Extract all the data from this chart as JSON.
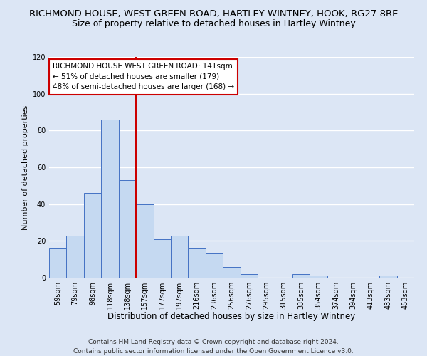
{
  "title": "RICHMOND HOUSE, WEST GREEN ROAD, HARTLEY WINTNEY, HOOK, RG27 8RE",
  "subtitle": "Size of property relative to detached houses in Hartley Wintney",
  "xlabel": "Distribution of detached houses by size in Hartley Wintney",
  "ylabel": "Number of detached properties",
  "bar_labels": [
    "59sqm",
    "79sqm",
    "98sqm",
    "118sqm",
    "138sqm",
    "157sqm",
    "177sqm",
    "197sqm",
    "216sqm",
    "236sqm",
    "256sqm",
    "276sqm",
    "295sqm",
    "315sqm",
    "335sqm",
    "354sqm",
    "374sqm",
    "394sqm",
    "413sqm",
    "433sqm",
    "453sqm"
  ],
  "bar_values": [
    16,
    23,
    46,
    86,
    53,
    40,
    21,
    23,
    16,
    13,
    6,
    2,
    0,
    0,
    2,
    1,
    0,
    0,
    0,
    1,
    0
  ],
  "bar_color": "#c5d9f1",
  "bar_edge_color": "#4472c4",
  "highlight_index": 4,
  "highlight_line_color": "#cc0000",
  "ylim": [
    0,
    120
  ],
  "yticks": [
    0,
    20,
    40,
    60,
    80,
    100,
    120
  ],
  "annotation_title": "RICHMOND HOUSE WEST GREEN ROAD: 141sqm",
  "annotation_line1": "← 51% of detached houses are smaller (179)",
  "annotation_line2": "48% of semi-detached houses are larger (168) →",
  "annotation_box_color": "#ffffff",
  "annotation_box_edge": "#cc0000",
  "footer_line1": "Contains HM Land Registry data © Crown copyright and database right 2024.",
  "footer_line2": "Contains public sector information licensed under the Open Government Licence v3.0.",
  "background_color": "#dce6f5",
  "grid_color": "#ffffff",
  "title_fontsize": 9.5,
  "subtitle_fontsize": 9,
  "xlabel_fontsize": 8.5,
  "ylabel_fontsize": 8,
  "tick_fontsize": 7,
  "footer_fontsize": 6.5,
  "annotation_fontsize": 7.5
}
